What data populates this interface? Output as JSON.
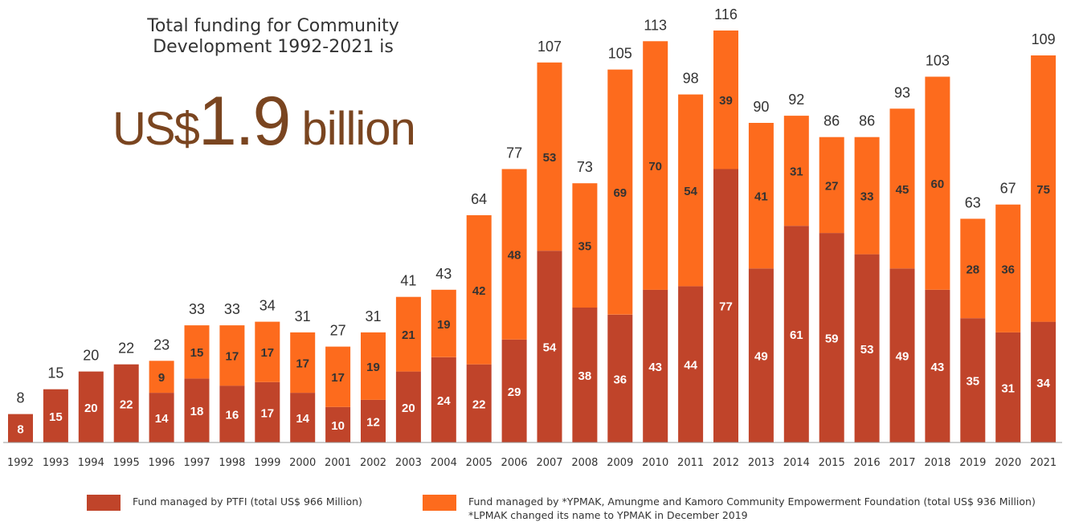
{
  "headline": {
    "line1": "Total funding for Community",
    "line2": "Development 1992-2021 is",
    "amount_prefix": "US$",
    "amount_number": "1.9",
    "amount_suffix": " billion"
  },
  "colors": {
    "ptfi": "#c0442a",
    "foundation": "#fd6b1d",
    "headline_amount": "#7a4520",
    "text": "#333333",
    "axis": "#999999"
  },
  "legend": {
    "ptfi_label": "Fund managed by PTFI (total US$ 966 Million)",
    "foundation_label": "Fund managed by *YPMAK, Amungme and Kamoro Community Empowerment Foundation  (total US$ 936 Million)",
    "foundation_note": "*LPMAK changed its name to YPMAK in December 2019"
  },
  "chart_data": {
    "type": "bar",
    "stacked": true,
    "categories": [
      "1992",
      "1993",
      "1994",
      "1995",
      "1996",
      "1997",
      "1998",
      "1999",
      "2000",
      "2001",
      "2002",
      "2003",
      "2004",
      "2005",
      "2006",
      "2007",
      "2008",
      "2009",
      "2010",
      "2011",
      "2012",
      "2013",
      "2014",
      "2015",
      "2016",
      "2017",
      "2018",
      "2019",
      "2020",
      "2021"
    ],
    "series": [
      {
        "name": "Fund managed by PTFI (total US$ 966 Million)",
        "color": "#c0442a",
        "values": [
          8,
          15,
          20,
          22,
          14,
          18,
          16,
          17,
          14,
          10,
          12,
          20,
          24,
          22,
          29,
          54,
          38,
          36,
          43,
          44,
          77,
          49,
          61,
          59,
          53,
          49,
          43,
          35,
          31,
          34
        ]
      },
      {
        "name": "Fund managed by *YPMAK, Amungme and Kamoro Community Empowerment Foundation  (total US$ 936 Million)",
        "color": "#fd6b1d",
        "values": [
          null,
          null,
          null,
          null,
          9,
          15,
          17,
          17,
          17,
          17,
          19,
          21,
          19,
          42,
          48,
          53,
          35,
          69,
          70,
          54,
          39,
          41,
          31,
          27,
          33,
          45,
          60,
          28,
          36,
          75
        ]
      }
    ],
    "totals": [
      8,
      15,
      20,
      22,
      23,
      33,
      33,
      34,
      31,
      27,
      31,
      41,
      43,
      64,
      77,
      107,
      73,
      105,
      113,
      98,
      116,
      90,
      92,
      86,
      86,
      93,
      103,
      63,
      67,
      109
    ],
    "ylim": [
      0,
      116
    ],
    "grid": false,
    "title": "",
    "xlabel": "",
    "ylabel": ""
  }
}
